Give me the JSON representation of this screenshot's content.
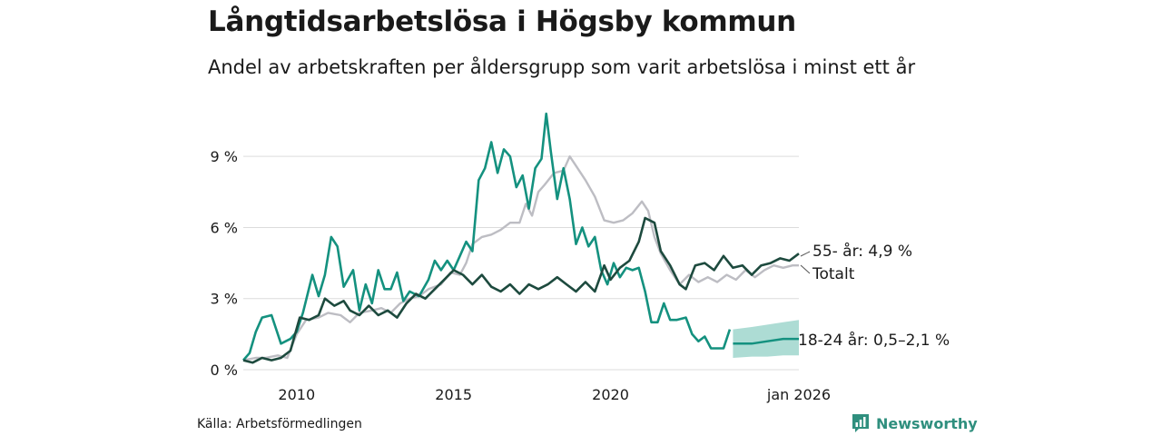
{
  "header": {
    "title": "Långtidsarbetslösa i Högsby kommun",
    "subtitle": "Andel av arbetskraften per åldersgrupp som varit arbetslösa i minst ett år"
  },
  "footer": {
    "source": "Källa: Arbetsförmedlingen",
    "brand": "Newsworthy"
  },
  "colors": {
    "youth": "#14917f",
    "youth_band": "#9fd6cc",
    "senior": "#1d4a3e",
    "total": "#bdbdc3",
    "grid": "#dcdcdc"
  },
  "chart_data": {
    "type": "line",
    "title": "Långtidsarbetslösa i Högsby kommun",
    "xlabel": "",
    "ylabel": "",
    "xlim": [
      2008.3,
      2026.0
    ],
    "ylim": [
      0,
      11
    ],
    "yticks": [
      {
        "value": 0,
        "label": "0 %"
      },
      {
        "value": 3,
        "label": "3 %"
      },
      {
        "value": 6,
        "label": "6 %"
      },
      {
        "value": 9,
        "label": "9 %"
      }
    ],
    "xticks": [
      {
        "value": 2010,
        "label": "2010"
      },
      {
        "value": 2015,
        "label": "2015"
      },
      {
        "value": 2020,
        "label": "2020"
      },
      {
        "value": 2026.0,
        "label": "jan 2026"
      }
    ],
    "series": [
      {
        "name": "Totalt",
        "label": "Totalt",
        "color_key": "total",
        "points": [
          [
            2008.3,
            0.4
          ],
          [
            2008.7,
            0.5
          ],
          [
            2009.0,
            0.5
          ],
          [
            2009.4,
            0.6
          ],
          [
            2009.7,
            0.5
          ],
          [
            2010.0,
            1.5
          ],
          [
            2010.3,
            2.1
          ],
          [
            2010.7,
            2.2
          ],
          [
            2011.0,
            2.4
          ],
          [
            2011.4,
            2.3
          ],
          [
            2011.7,
            2.0
          ],
          [
            2012.0,
            2.4
          ],
          [
            2012.4,
            2.5
          ],
          [
            2012.7,
            2.6
          ],
          [
            2013.0,
            2.4
          ],
          [
            2013.3,
            2.8
          ],
          [
            2013.6,
            3.0
          ],
          [
            2013.9,
            3.1
          ],
          [
            2014.2,
            3.4
          ],
          [
            2014.6,
            3.6
          ],
          [
            2014.9,
            4.1
          ],
          [
            2015.2,
            4.0
          ],
          [
            2015.4,
            4.5
          ],
          [
            2015.6,
            5.3
          ],
          [
            2015.9,
            5.6
          ],
          [
            2016.2,
            5.7
          ],
          [
            2016.5,
            5.9
          ],
          [
            2016.8,
            6.2
          ],
          [
            2017.1,
            6.2
          ],
          [
            2017.3,
            7.0
          ],
          [
            2017.5,
            6.5
          ],
          [
            2017.7,
            7.5
          ],
          [
            2017.9,
            7.8
          ],
          [
            2018.2,
            8.3
          ],
          [
            2018.5,
            8.4
          ],
          [
            2018.7,
            9.0
          ],
          [
            2018.9,
            8.6
          ],
          [
            2019.2,
            8.0
          ],
          [
            2019.5,
            7.3
          ],
          [
            2019.8,
            6.3
          ],
          [
            2020.1,
            6.2
          ],
          [
            2020.4,
            6.3
          ],
          [
            2020.7,
            6.6
          ],
          [
            2021.0,
            7.1
          ],
          [
            2021.2,
            6.7
          ],
          [
            2021.4,
            5.6
          ],
          [
            2021.6,
            4.9
          ],
          [
            2021.9,
            4.2
          ],
          [
            2022.2,
            3.6
          ],
          [
            2022.5,
            4.0
          ],
          [
            2022.8,
            3.7
          ],
          [
            2023.1,
            3.9
          ],
          [
            2023.4,
            3.7
          ],
          [
            2023.7,
            4.0
          ],
          [
            2024.0,
            3.8
          ],
          [
            2024.3,
            4.2
          ],
          [
            2024.6,
            3.9
          ],
          [
            2024.9,
            4.2
          ],
          [
            2025.2,
            4.4
          ],
          [
            2025.5,
            4.3
          ],
          [
            2025.8,
            4.4
          ],
          [
            2026.0,
            4.4
          ]
        ]
      },
      {
        "name": "55- år",
        "label": "55- år: 4,9 %",
        "color_key": "senior",
        "points": [
          [
            2008.3,
            0.4
          ],
          [
            2008.6,
            0.3
          ],
          [
            2008.9,
            0.5
          ],
          [
            2009.2,
            0.4
          ],
          [
            2009.5,
            0.5
          ],
          [
            2009.8,
            0.8
          ],
          [
            2010.1,
            2.2
          ],
          [
            2010.4,
            2.1
          ],
          [
            2010.7,
            2.3
          ],
          [
            2010.9,
            3.0
          ],
          [
            2011.2,
            2.7
          ],
          [
            2011.5,
            2.9
          ],
          [
            2011.7,
            2.5
          ],
          [
            2012.0,
            2.3
          ],
          [
            2012.3,
            2.7
          ],
          [
            2012.6,
            2.3
          ],
          [
            2012.9,
            2.5
          ],
          [
            2013.2,
            2.2
          ],
          [
            2013.5,
            2.8
          ],
          [
            2013.8,
            3.2
          ],
          [
            2014.1,
            3.0
          ],
          [
            2014.4,
            3.4
          ],
          [
            2014.7,
            3.8
          ],
          [
            2015.0,
            4.2
          ],
          [
            2015.3,
            4.0
          ],
          [
            2015.6,
            3.6
          ],
          [
            2015.9,
            4.0
          ],
          [
            2016.2,
            3.5
          ],
          [
            2016.5,
            3.3
          ],
          [
            2016.8,
            3.6
          ],
          [
            2017.1,
            3.2
          ],
          [
            2017.4,
            3.6
          ],
          [
            2017.7,
            3.4
          ],
          [
            2018.0,
            3.6
          ],
          [
            2018.3,
            3.9
          ],
          [
            2018.6,
            3.6
          ],
          [
            2018.9,
            3.3
          ],
          [
            2019.2,
            3.7
          ],
          [
            2019.5,
            3.3
          ],
          [
            2019.8,
            4.4
          ],
          [
            2020.0,
            3.8
          ],
          [
            2020.3,
            4.3
          ],
          [
            2020.6,
            4.6
          ],
          [
            2020.9,
            5.4
          ],
          [
            2021.1,
            6.4
          ],
          [
            2021.4,
            6.2
          ],
          [
            2021.6,
            5.0
          ],
          [
            2021.9,
            4.4
          ],
          [
            2022.2,
            3.6
          ],
          [
            2022.4,
            3.4
          ],
          [
            2022.7,
            4.4
          ],
          [
            2023.0,
            4.5
          ],
          [
            2023.3,
            4.2
          ],
          [
            2023.6,
            4.8
          ],
          [
            2023.9,
            4.3
          ],
          [
            2024.2,
            4.4
          ],
          [
            2024.5,
            4.0
          ],
          [
            2024.8,
            4.4
          ],
          [
            2025.1,
            4.5
          ],
          [
            2025.4,
            4.7
          ],
          [
            2025.7,
            4.6
          ],
          [
            2026.0,
            4.9
          ]
        ]
      },
      {
        "name": "18-24 år",
        "label": "18-24 år: 0,5–2,1 %",
        "color_key": "youth",
        "points": [
          [
            2008.3,
            0.4
          ],
          [
            2008.5,
            0.7
          ],
          [
            2008.7,
            1.6
          ],
          [
            2008.9,
            2.2
          ],
          [
            2009.2,
            2.3
          ],
          [
            2009.5,
            1.1
          ],
          [
            2009.8,
            1.3
          ],
          [
            2010.0,
            1.6
          ],
          [
            2010.2,
            2.4
          ],
          [
            2010.5,
            4.0
          ],
          [
            2010.7,
            3.1
          ],
          [
            2010.9,
            4.0
          ],
          [
            2011.1,
            5.6
          ],
          [
            2011.3,
            5.2
          ],
          [
            2011.5,
            3.5
          ],
          [
            2011.8,
            4.2
          ],
          [
            2012.0,
            2.5
          ],
          [
            2012.2,
            3.6
          ],
          [
            2012.4,
            2.8
          ],
          [
            2012.6,
            4.2
          ],
          [
            2012.8,
            3.4
          ],
          [
            2013.0,
            3.4
          ],
          [
            2013.2,
            4.1
          ],
          [
            2013.4,
            2.9
          ],
          [
            2013.6,
            3.3
          ],
          [
            2013.9,
            3.1
          ],
          [
            2014.2,
            3.8
          ],
          [
            2014.4,
            4.6
          ],
          [
            2014.6,
            4.2
          ],
          [
            2014.8,
            4.6
          ],
          [
            2015.0,
            4.2
          ],
          [
            2015.2,
            4.8
          ],
          [
            2015.4,
            5.4
          ],
          [
            2015.6,
            5.0
          ],
          [
            2015.8,
            8.0
          ],
          [
            2016.0,
            8.5
          ],
          [
            2016.2,
            9.6
          ],
          [
            2016.4,
            8.3
          ],
          [
            2016.6,
            9.3
          ],
          [
            2016.8,
            9.0
          ],
          [
            2017.0,
            7.7
          ],
          [
            2017.2,
            8.2
          ],
          [
            2017.4,
            6.8
          ],
          [
            2017.6,
            8.5
          ],
          [
            2017.8,
            8.9
          ],
          [
            2017.95,
            10.8
          ],
          [
            2018.1,
            9.2
          ],
          [
            2018.3,
            7.2
          ],
          [
            2018.5,
            8.5
          ],
          [
            2018.7,
            7.2
          ],
          [
            2018.9,
            5.3
          ],
          [
            2019.1,
            6.0
          ],
          [
            2019.3,
            5.2
          ],
          [
            2019.5,
            5.6
          ],
          [
            2019.7,
            4.2
          ],
          [
            2019.9,
            3.6
          ],
          [
            2020.1,
            4.5
          ],
          [
            2020.3,
            3.9
          ],
          [
            2020.5,
            4.3
          ],
          [
            2020.7,
            4.2
          ],
          [
            2020.9,
            4.3
          ],
          [
            2021.1,
            3.3
          ],
          [
            2021.3,
            2.0
          ],
          [
            2021.5,
            2.0
          ],
          [
            2021.7,
            2.8
          ],
          [
            2021.9,
            2.1
          ],
          [
            2022.1,
            2.1
          ],
          [
            2022.4,
            2.2
          ],
          [
            2022.6,
            1.5
          ],
          [
            2022.8,
            1.2
          ],
          [
            2023.0,
            1.4
          ],
          [
            2023.2,
            0.9
          ],
          [
            2023.4,
            0.9
          ],
          [
            2023.6,
            0.9
          ],
          [
            2023.8,
            1.7
          ]
        ],
        "forecast": {
          "points": [
            [
              2023.9,
              1.1
            ],
            [
              2024.5,
              1.1
            ],
            [
              2025.0,
              1.2
            ],
            [
              2025.5,
              1.3
            ],
            [
              2026.0,
              1.3
            ]
          ],
          "band_lower": [
            [
              2023.9,
              0.5
            ],
            [
              2024.5,
              0.55
            ],
            [
              2025.0,
              0.55
            ],
            [
              2025.5,
              0.6
            ],
            [
              2026.0,
              0.6
            ]
          ],
          "band_upper": [
            [
              2023.9,
              1.7
            ],
            [
              2024.5,
              1.8
            ],
            [
              2025.0,
              1.9
            ],
            [
              2025.5,
              2.0
            ],
            [
              2026.0,
              2.1
            ]
          ]
        }
      }
    ]
  }
}
